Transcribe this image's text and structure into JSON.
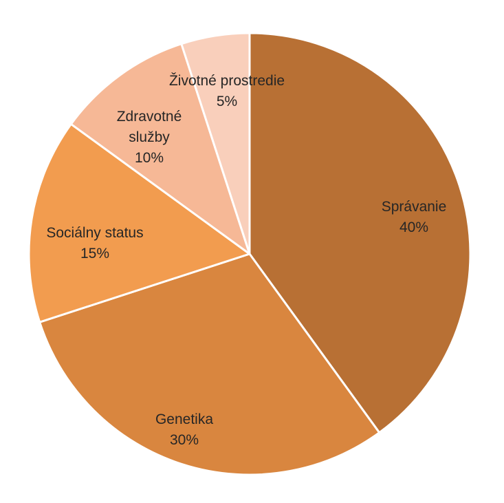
{
  "chart_data": {
    "type": "pie",
    "title": "",
    "legend": "none",
    "start_angle_deg": 0,
    "direction": "clockwise",
    "slices": [
      {
        "label_lines": [
          "Správanie"
        ],
        "value": 40,
        "value_label": "40%",
        "color": "#B87034"
      },
      {
        "label_lines": [
          "Genetika"
        ],
        "value": 30,
        "value_label": "30%",
        "color": "#D9863F"
      },
      {
        "label_lines": [
          "Sociálny status"
        ],
        "value": 15,
        "value_label": "15%",
        "color": "#F29C4F"
      },
      {
        "label_lines": [
          "Zdravotné",
          "služby"
        ],
        "value": 10,
        "value_label": "10%",
        "color": "#F6B896"
      },
      {
        "label_lines": [
          "Životné prostredie"
        ],
        "value": 5,
        "value_label": "5%",
        "color": "#F9CFBB"
      }
    ]
  }
}
